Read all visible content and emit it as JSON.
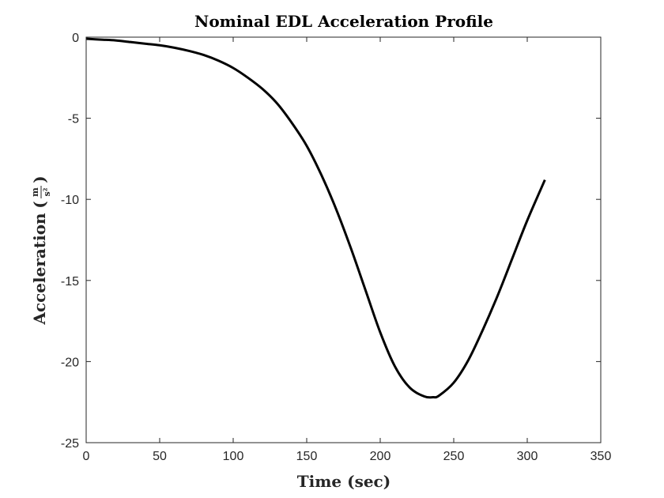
{
  "chart_data": {
    "type": "line",
    "title": "Nominal EDL Acceleration Profile",
    "xlabel": "Time (sec)",
    "ylabel": "Acceleration",
    "ylabel_unit_numerator": "m",
    "ylabel_unit_denominator": "s²",
    "xlim": [
      0,
      350
    ],
    "ylim": [
      -25,
      0
    ],
    "xticks": [
      0,
      50,
      100,
      150,
      200,
      250,
      300,
      350
    ],
    "yticks": [
      0,
      -5,
      -10,
      -15,
      -20,
      -25
    ],
    "grid": false,
    "line_color": "#000000",
    "series": [
      {
        "x": [
          0,
          10,
          20,
          30,
          40,
          50,
          60,
          70,
          80,
          90,
          100,
          110,
          120,
          130,
          140,
          150,
          160,
          170,
          180,
          190,
          200,
          210,
          220,
          230,
          236,
          240,
          250,
          260,
          270,
          280,
          290,
          300,
          312
        ],
        "y": [
          -0.1,
          -0.15,
          -0.2,
          -0.3,
          -0.4,
          -0.5,
          -0.65,
          -0.85,
          -1.1,
          -1.45,
          -1.9,
          -2.5,
          -3.2,
          -4.1,
          -5.3,
          -6.7,
          -8.5,
          -10.6,
          -13.0,
          -15.6,
          -18.2,
          -20.3,
          -21.6,
          -22.15,
          -22.2,
          -22.1,
          -21.3,
          -19.9,
          -18.0,
          -15.9,
          -13.6,
          -11.3,
          -8.8
        ]
      }
    ]
  }
}
